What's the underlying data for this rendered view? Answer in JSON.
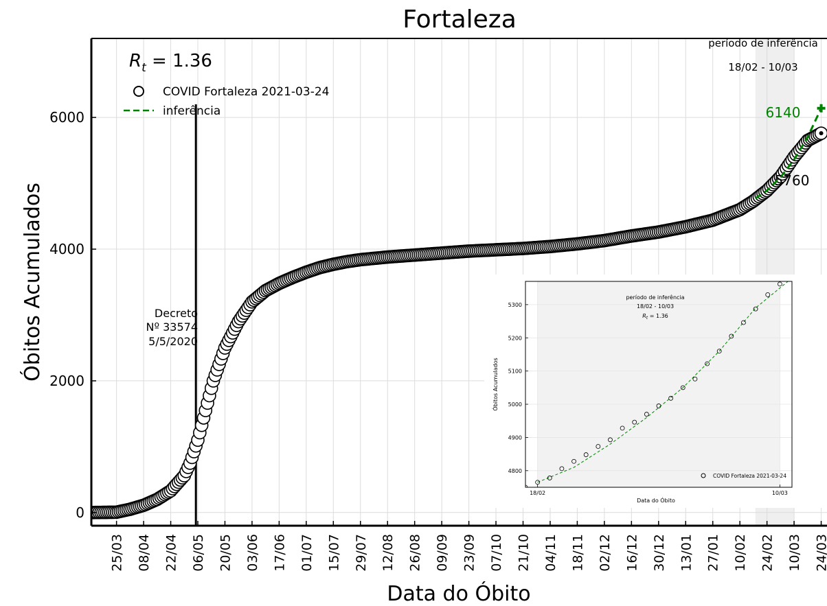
{
  "chart_data": [
    {
      "type": "scatter",
      "title": "Fortaleza",
      "xlabel": "Data do Óbito",
      "ylabel": "Óbitos Acumulados",
      "x_unit": "date",
      "xlim": [
        "2020-03-12",
        "2021-03-27"
      ],
      "ylim": [
        -200,
        7200
      ],
      "yticks": [
        0,
        2000,
        4000,
        6000
      ],
      "xticks": [
        "2020-03-25",
        "2020-04-08",
        "2020-04-22",
        "2020-05-06",
        "2020-05-20",
        "2020-06-03",
        "2020-06-17",
        "2020-07-01",
        "2020-07-15",
        "2020-07-29",
        "2020-08-12",
        "2020-08-26",
        "2020-09-09",
        "2020-09-23",
        "2020-10-07",
        "2020-10-21",
        "2020-11-04",
        "2020-11-18",
        "2020-12-02",
        "2020-12-16",
        "2020-12-30",
        "2021-01-13",
        "2021-01-27",
        "2021-02-10",
        "2021-02-24",
        "2021-03-10",
        "2021-03-24"
      ],
      "xtick_labels": [
        "25/03",
        "08/04",
        "22/04",
        "06/05",
        "20/05",
        "03/06",
        "17/06",
        "01/07",
        "15/07",
        "29/07",
        "12/08",
        "26/08",
        "09/09",
        "23/09",
        "07/10",
        "21/10",
        "04/11",
        "18/11",
        "02/12",
        "16/12",
        "30/12",
        "13/01",
        "27/01",
        "10/02",
        "24/02",
        "10/03",
        "24/03"
      ],
      "grid": true,
      "legend_placement": "top-left",
      "series": [
        {
          "name": "COVID Fortaleza 2021-03-24",
          "marker": "open-circle",
          "color": "#000000",
          "x": [
            "2020-03-12",
            "2020-03-25",
            "2020-04-01",
            "2020-04-08",
            "2020-04-15",
            "2020-04-22",
            "2020-04-29",
            "2020-05-02",
            "2020-05-06",
            "2020-05-10",
            "2020-05-14",
            "2020-05-20",
            "2020-05-27",
            "2020-06-03",
            "2020-06-10",
            "2020-06-17",
            "2020-06-24",
            "2020-07-01",
            "2020-07-08",
            "2020-07-15",
            "2020-07-22",
            "2020-07-29",
            "2020-08-12",
            "2020-08-26",
            "2020-09-09",
            "2020-09-23",
            "2020-10-07",
            "2020-10-21",
            "2020-11-04",
            "2020-11-18",
            "2020-12-02",
            "2020-12-16",
            "2020-12-30",
            "2021-01-13",
            "2021-01-27",
            "2021-02-10",
            "2021-02-17",
            "2021-02-24",
            "2021-03-03",
            "2021-03-10",
            "2021-03-17",
            "2021-03-24"
          ],
          "y": [
            0,
            5,
            50,
            110,
            200,
            330,
            560,
            750,
            1100,
            1550,
            2000,
            2500,
            2900,
            3200,
            3370,
            3480,
            3570,
            3650,
            3720,
            3770,
            3810,
            3840,
            3880,
            3910,
            3940,
            3970,
            3990,
            4010,
            4040,
            4080,
            4130,
            4200,
            4260,
            4340,
            4440,
            4600,
            4730,
            4890,
            5100,
            5400,
            5650,
            5760
          ]
        },
        {
          "name": "inferência",
          "line_style": "dashed",
          "color": "#008000",
          "x": [
            "2021-02-18",
            "2021-02-24",
            "2021-03-03",
            "2021-03-10",
            "2021-03-17",
            "2021-03-24"
          ],
          "y": [
            4770,
            4890,
            5090,
            5360,
            5700,
            6140
          ]
        }
      ],
      "annotations": {
        "rt_label": "R",
        "rt_sub": "t",
        "rt_value": " = 1.36",
        "decree_date": "2020-05-05",
        "decree_lines": [
          "Decreto",
          "Nº 33574",
          "5/5/2020"
        ],
        "period_label": "período de inferência",
        "period_range": "18/02 - 10/03",
        "period_start": "2021-02-18",
        "period_end": "2021-03-10",
        "predicted_value": "6140",
        "predicted_color": "#008000",
        "observed_value": "5760"
      }
    },
    {
      "type": "scatter",
      "title": "",
      "xlabel": "Data do Óbito",
      "ylabel": "Óbitos Acumulados",
      "x_unit": "date",
      "xlim": [
        "2021-02-17",
        "2021-03-11"
      ],
      "ylim": [
        4750,
        5370
      ],
      "yticks": [
        4800,
        4900,
        5000,
        5100,
        5200,
        5300
      ],
      "xticks": [
        "2021-02-18",
        "2021-03-10"
      ],
      "xtick_labels": [
        "18/02",
        "10/03"
      ],
      "legend_placement": "bottom-right",
      "series": [
        {
          "name": "COVID Fortaleza 2021-03-24",
          "marker": "open-circle",
          "color": "#000000",
          "x": [
            "2021-02-17",
            "2021-02-18",
            "2021-02-19",
            "2021-02-20",
            "2021-02-21",
            "2021-02-22",
            "2021-02-23",
            "2021-02-24",
            "2021-02-25",
            "2021-02-26",
            "2021-02-27",
            "2021-02-28",
            "2021-03-01",
            "2021-03-02",
            "2021-03-03",
            "2021-03-04",
            "2021-03-05",
            "2021-03-06",
            "2021-03-07",
            "2021-03-08",
            "2021-03-09",
            "2021-03-10"
          ],
          "y": [
            4750,
            4765,
            4778,
            4806,
            4828,
            4848,
            4873,
            4893,
            4928,
            4946,
            4970,
            4995,
            5018,
            5050,
            5076,
            5122,
            5160,
            5205,
            5246,
            5287,
            5330,
            5362
          ]
        },
        {
          "name": "",
          "line_style": "dashed",
          "color": "#008000",
          "x": [
            "2021-02-18",
            "2021-02-21",
            "2021-02-24",
            "2021-02-27",
            "2021-03-02",
            "2021-03-05",
            "2021-03-08",
            "2021-03-11"
          ],
          "y": [
            4765,
            4810,
            4880,
            4960,
            5050,
            5160,
            5290,
            5380
          ]
        }
      ],
      "annotations": {
        "period_label": "período de inferência",
        "period_range": "18/02 - 10/03",
        "rt_label": "R",
        "rt_sub": "t",
        "rt_value": " = 1.36",
        "shade_start": "2021-02-18",
        "shade_end": "2021-03-10"
      }
    }
  ]
}
